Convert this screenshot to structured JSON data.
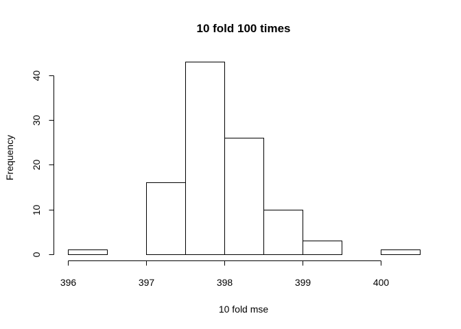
{
  "chart_data": {
    "type": "bar",
    "title": "10 fold 100 times",
    "xlabel": "10 fold mse",
    "ylabel": "Frequency",
    "bins": [
      {
        "start": 396.0,
        "end": 396.5,
        "count": 1
      },
      {
        "start": 396.5,
        "end": 397.0,
        "count": 0
      },
      {
        "start": 397.0,
        "end": 397.5,
        "count": 16
      },
      {
        "start": 397.5,
        "end": 398.0,
        "count": 43
      },
      {
        "start": 398.0,
        "end": 398.5,
        "count": 26
      },
      {
        "start": 398.5,
        "end": 399.0,
        "count": 10
      },
      {
        "start": 399.0,
        "end": 399.5,
        "count": 3
      },
      {
        "start": 399.5,
        "end": 400.0,
        "count": 0
      },
      {
        "start": 400.0,
        "end": 400.5,
        "count": 1
      }
    ],
    "xlim": [
      396,
      400.5
    ],
    "ylim": [
      0,
      43
    ],
    "xticks": [
      396,
      397,
      398,
      399,
      400
    ],
    "xtick_labels": [
      "396",
      "397",
      "398",
      "399",
      "400"
    ],
    "yticks": [
      0,
      10,
      20,
      30,
      40
    ],
    "ytick_labels": [
      "0",
      "10",
      "20",
      "30",
      "40"
    ],
    "grid": false,
    "colors": {
      "bar_fill": "#ffffff",
      "bar_stroke": "#000000",
      "background": "#ffffff"
    }
  }
}
